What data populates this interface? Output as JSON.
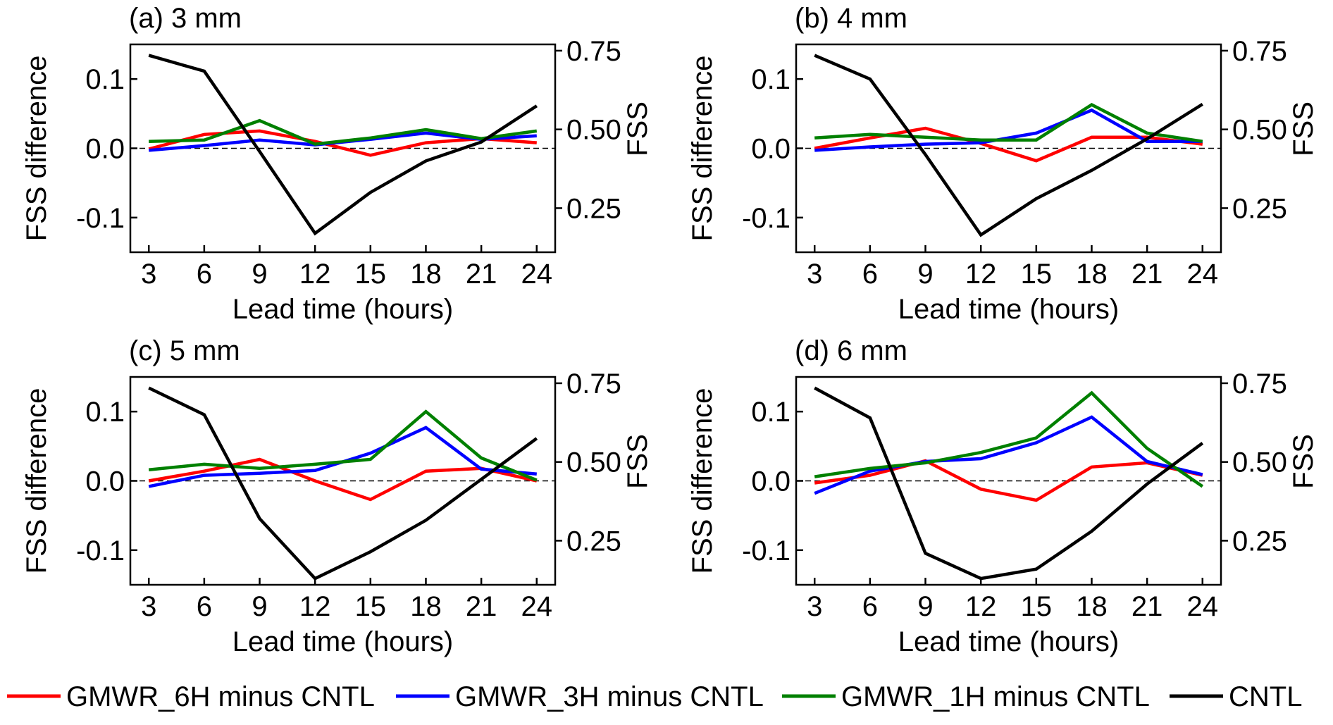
{
  "figure": {
    "background": "#ffffff"
  },
  "shared_axes": {
    "x_label": "Lead time (hours)",
    "y_left_label": "FSS difference",
    "y_right_label": "FSS",
    "x_ticks": [
      3,
      6,
      9,
      12,
      15,
      18,
      21,
      24
    ],
    "x_tick_labels": [
      "3",
      "6",
      "9",
      "12",
      "15",
      "18",
      "21",
      "24"
    ],
    "xlim": [
      2,
      25
    ],
    "y_left_ticks": [
      -0.1,
      0.0,
      0.1
    ],
    "y_left_tick_labels": [
      "-0.1",
      "0.0",
      "0.1"
    ],
    "y_left_lim": [
      -0.15,
      0.15
    ],
    "y_right_ticks": [
      0.25,
      0.5,
      0.75
    ],
    "y_right_tick_labels": [
      "0.25",
      "0.50",
      "0.75"
    ],
    "y_right_lim": [
      0.11,
      0.77
    ],
    "zero_line": "dashed"
  },
  "legend": {
    "placement": "bottom",
    "items": [
      {
        "label": "GMWR_6H minus CNTL",
        "color": "#ff0000"
      },
      {
        "label": "GMWR_3H minus CNTL",
        "color": "#0000ff"
      },
      {
        "label": "GMWR_1H minus CNTL",
        "color": "#008000"
      },
      {
        "label": "CNTL",
        "color": "#000000"
      }
    ]
  },
  "chart_data": [
    {
      "type": "line",
      "title": "(a) 3 mm",
      "xlabel": "Lead time (hours)",
      "ylabel": "FSS difference",
      "ylabel_right": "FSS",
      "x": [
        3,
        6,
        9,
        12,
        15,
        18,
        21,
        24
      ],
      "series": [
        {
          "name": "GMWR_6H minus CNTL",
          "axis": "left",
          "color": "#ff0000",
          "values": [
            -0.001,
            0.02,
            0.025,
            0.01,
            -0.01,
            0.008,
            0.014,
            0.008
          ]
        },
        {
          "name": "GMWR_3H minus CNTL",
          "axis": "left",
          "color": "#0000ff",
          "values": [
            -0.003,
            0.004,
            0.012,
            0.005,
            0.013,
            0.022,
            0.013,
            0.018
          ]
        },
        {
          "name": "GMWR_1H minus CNTL",
          "axis": "left",
          "color": "#008000",
          "values": [
            0.01,
            0.012,
            0.04,
            0.006,
            0.015,
            0.027,
            0.014,
            0.025
          ]
        },
        {
          "name": "CNTL",
          "axis": "right",
          "color": "#000000",
          "values": [
            0.735,
            0.685,
            0.43,
            0.17,
            0.3,
            0.4,
            0.46,
            0.575
          ]
        }
      ]
    },
    {
      "type": "line",
      "title": "(b) 4 mm",
      "xlabel": "Lead time (hours)",
      "ylabel": "FSS difference",
      "ylabel_right": "FSS",
      "x": [
        3,
        6,
        9,
        12,
        15,
        18,
        21,
        24
      ],
      "series": [
        {
          "name": "GMWR_6H minus CNTL",
          "axis": "left",
          "color": "#ff0000",
          "values": [
            0.0,
            0.015,
            0.029,
            0.007,
            -0.018,
            0.016,
            0.016,
            0.006
          ]
        },
        {
          "name": "GMWR_3H minus CNTL",
          "axis": "left",
          "color": "#0000ff",
          "values": [
            -0.003,
            0.002,
            0.006,
            0.008,
            0.022,
            0.055,
            0.01,
            0.01
          ]
        },
        {
          "name": "GMWR_1H minus CNTL",
          "axis": "left",
          "color": "#008000",
          "values": [
            0.015,
            0.02,
            0.016,
            0.012,
            0.012,
            0.063,
            0.022,
            0.01
          ]
        },
        {
          "name": "CNTL",
          "axis": "right",
          "color": "#000000",
          "values": [
            0.735,
            0.66,
            0.42,
            0.165,
            0.28,
            0.37,
            0.47,
            0.58
          ]
        }
      ]
    },
    {
      "type": "line",
      "title": "(c) 5 mm",
      "xlabel": "Lead time (hours)",
      "ylabel": "FSS difference",
      "ylabel_right": "FSS",
      "x": [
        3,
        6,
        9,
        12,
        15,
        18,
        21,
        24
      ],
      "series": [
        {
          "name": "GMWR_6H minus CNTL",
          "axis": "left",
          "color": "#ff0000",
          "values": [
            0.0,
            0.014,
            0.031,
            0.0,
            -0.027,
            0.014,
            0.018,
            0.0
          ]
        },
        {
          "name": "GMWR_3H minus CNTL",
          "axis": "left",
          "color": "#0000ff",
          "values": [
            -0.008,
            0.008,
            0.011,
            0.015,
            0.04,
            0.077,
            0.017,
            0.01
          ]
        },
        {
          "name": "GMWR_1H minus CNTL",
          "axis": "left",
          "color": "#008000",
          "values": [
            0.016,
            0.024,
            0.018,
            0.024,
            0.031,
            0.1,
            0.033,
            0.001
          ]
        },
        {
          "name": "CNTL",
          "axis": "right",
          "color": "#000000",
          "values": [
            0.735,
            0.65,
            0.32,
            0.13,
            0.215,
            0.315,
            0.445,
            0.575
          ]
        }
      ]
    },
    {
      "type": "line",
      "title": "(d) 6 mm",
      "xlabel": "Lead time (hours)",
      "ylabel": "FSS difference",
      "ylabel_right": "FSS",
      "x": [
        3,
        6,
        9,
        12,
        15,
        18,
        21,
        24
      ],
      "series": [
        {
          "name": "GMWR_6H minus CNTL",
          "axis": "left",
          "color": "#ff0000",
          "values": [
            -0.003,
            0.008,
            0.029,
            -0.012,
            -0.028,
            0.02,
            0.026,
            0.008
          ]
        },
        {
          "name": "GMWR_3H minus CNTL",
          "axis": "left",
          "color": "#0000ff",
          "values": [
            -0.018,
            0.014,
            0.028,
            0.032,
            0.055,
            0.092,
            0.028,
            0.009
          ]
        },
        {
          "name": "GMWR_1H minus CNTL",
          "axis": "left",
          "color": "#008000",
          "values": [
            0.006,
            0.018,
            0.026,
            0.041,
            0.062,
            0.127,
            0.047,
            -0.008
          ]
        },
        {
          "name": "CNTL",
          "axis": "right",
          "color": "#000000",
          "values": [
            0.735,
            0.64,
            0.21,
            0.13,
            0.16,
            0.28,
            0.43,
            0.56
          ]
        }
      ]
    }
  ]
}
